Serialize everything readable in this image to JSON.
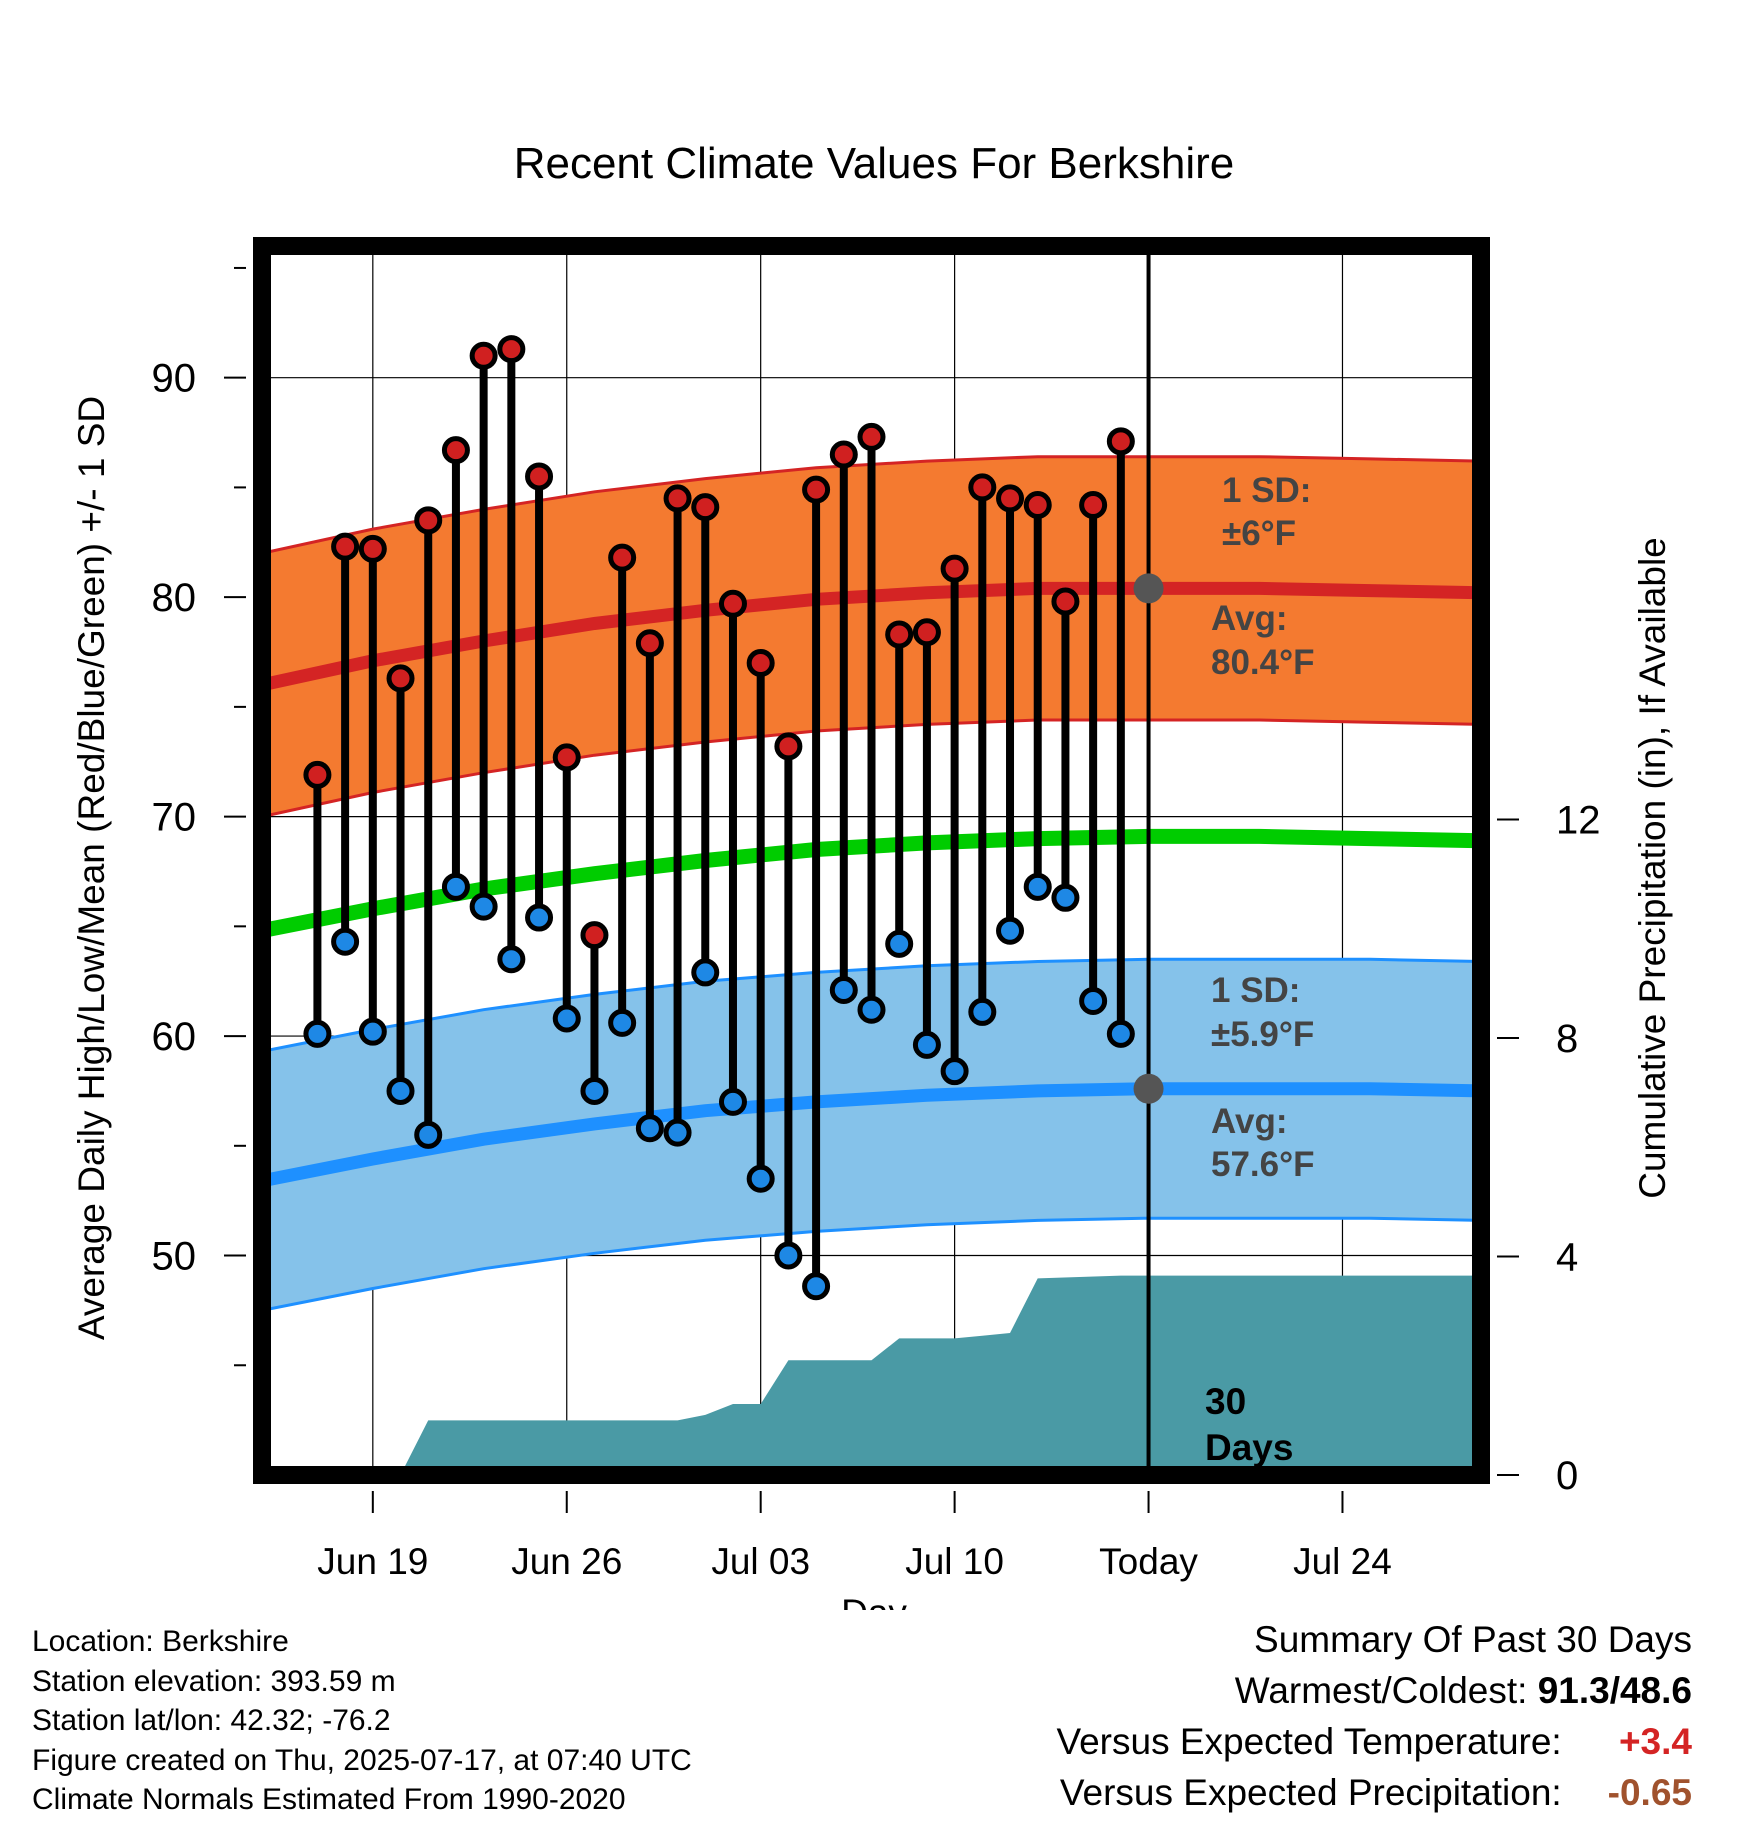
{
  "chart_data": {
    "type": "line",
    "title": "Recent Climate Values For Berkshire",
    "xlabel": "Day",
    "ylabel": "Average Daily High/Low/Mean (Red/Blue/Green) +/- 1 SD",
    "y2label": "Cumulative Precipitation (in), If Available",
    "xlim": [
      "2025-06-15",
      "2025-07-29"
    ],
    "ylim": [
      40,
      96
    ],
    "y2lim": [
      0,
      22.5
    ],
    "x_ticks": [
      {
        "day": "2025-06-19",
        "label": "Jun 19"
      },
      {
        "day": "2025-06-26",
        "label": "Jun 26"
      },
      {
        "day": "2025-07-03",
        "label": "Jul 03"
      },
      {
        "day": "2025-07-10",
        "label": "Jul 10"
      },
      {
        "day": "2025-07-17",
        "label": "Today"
      },
      {
        "day": "2025-07-24",
        "label": "Jul 24"
      }
    ],
    "y_ticks": [
      "50",
      "60",
      "70",
      "80",
      "90"
    ],
    "y_minor_ticks": [
      45,
      55,
      65,
      75,
      85,
      95
    ],
    "y2_ticks": [
      "0",
      "4",
      "8",
      "12"
    ],
    "grid": true,
    "today": "2025-07-17",
    "colors": {
      "high_band": "#f47a30",
      "high_line": "#d42424",
      "low_band": "#85c2ea",
      "low_line": "#1e90ff",
      "mean_line": "#00cc00",
      "precip": "#4a9aa5",
      "high_dot": "#d02020",
      "low_dot": "#1e88e5"
    },
    "normal_days": [
      "2025-06-15",
      "2025-06-19",
      "2025-06-23",
      "2025-06-27",
      "2025-07-01",
      "2025-07-05",
      "2025-07-09",
      "2025-07-13",
      "2025-07-17",
      "2025-07-21",
      "2025-07-25",
      "2025-07-29"
    ],
    "normal_high": [
      76.0,
      77.1,
      78.0,
      78.8,
      79.4,
      79.9,
      80.2,
      80.4,
      80.4,
      80.4,
      80.3,
      80.2
    ],
    "normal_low": [
      53.4,
      54.4,
      55.3,
      56.0,
      56.6,
      57.0,
      57.3,
      57.5,
      57.6,
      57.6,
      57.6,
      57.5
    ],
    "normal_mean": [
      64.8,
      65.8,
      66.7,
      67.4,
      68.0,
      68.5,
      68.8,
      69.0,
      69.1,
      69.1,
      69.0,
      68.9
    ],
    "high_sd": 6.0,
    "low_sd": 5.9,
    "daily_days": [
      "2025-06-17",
      "2025-06-18",
      "2025-06-19",
      "2025-06-20",
      "2025-06-21",
      "2025-06-22",
      "2025-06-23",
      "2025-06-24",
      "2025-06-25",
      "2025-06-26",
      "2025-06-27",
      "2025-06-28",
      "2025-06-29",
      "2025-06-30",
      "2025-07-01",
      "2025-07-02",
      "2025-07-03",
      "2025-07-04",
      "2025-07-05",
      "2025-07-06",
      "2025-07-07",
      "2025-07-08",
      "2025-07-09",
      "2025-07-10",
      "2025-07-11",
      "2025-07-12",
      "2025-07-13",
      "2025-07-14",
      "2025-07-15",
      "2025-07-16"
    ],
    "daily_high": [
      71.9,
      82.3,
      82.2,
      76.3,
      83.5,
      86.7,
      91.0,
      91.3,
      85.5,
      72.7,
      64.6,
      81.8,
      77.9,
      84.5,
      84.1,
      79.7,
      77.0,
      73.2,
      84.9,
      86.5,
      87.3,
      78.3,
      78.4,
      81.3,
      85.0,
      84.5,
      84.2,
      79.8,
      84.2,
      87.1
    ],
    "daily_low": [
      60.1,
      64.3,
      60.2,
      57.5,
      55.5,
      66.8,
      65.9,
      63.5,
      65.4,
      60.8,
      57.5,
      60.6,
      55.8,
      55.6,
      62.9,
      57.0,
      53.5,
      50.0,
      48.6,
      62.1,
      61.2,
      64.2,
      59.6,
      58.4,
      61.1,
      64.8,
      66.8,
      66.3,
      61.6,
      60.1
    ],
    "precip_steps": [
      {
        "day": "2025-06-15",
        "value": 0.0
      },
      {
        "day": "2025-06-20",
        "value": 0.0
      },
      {
        "day": "2025-06-21",
        "value": 1.0
      },
      {
        "day": "2025-06-30",
        "value": 1.0
      },
      {
        "day": "2025-07-01",
        "value": 1.1
      },
      {
        "day": "2025-07-02",
        "value": 1.3
      },
      {
        "day": "2025-07-03",
        "value": 1.3
      },
      {
        "day": "2025-07-04",
        "value": 2.1
      },
      {
        "day": "2025-07-07",
        "value": 2.1
      },
      {
        "day": "2025-07-08",
        "value": 2.5
      },
      {
        "day": "2025-07-10",
        "value": 2.5
      },
      {
        "day": "2025-07-11",
        "value": 2.55
      },
      {
        "day": "2025-07-12",
        "value": 2.6
      },
      {
        "day": "2025-07-13",
        "value": 3.6
      },
      {
        "day": "2025-07-16",
        "value": 3.65
      },
      {
        "day": "2025-07-29",
        "value": 3.65
      }
    ],
    "annotations": {
      "high_sd_label": "1 SD:",
      "high_sd_value": "±6°F",
      "high_avg_label": "Avg:",
      "high_avg_value": "80.4°F",
      "low_sd_label": "1 SD:",
      "low_sd_value": "±5.9°F",
      "low_avg_label": "Avg:",
      "low_avg_value": "57.6°F",
      "period_number": "30",
      "period_unit": "Days"
    }
  },
  "station": {
    "location": "Location: Berkshire",
    "elevation": "Station elevation: 393.59 m",
    "latlon": "Station lat/lon: 42.32; -76.2",
    "created": "Figure created on Thu, 2025-07-17, at 07:40 UTC",
    "normals": "Climate Normals Estimated From 1990-2020"
  },
  "summary": {
    "title": "Summary Of Past 30 Days",
    "warm_cold_label": "Warmest/Coldest:",
    "warm_cold_value": "91.3/48.6",
    "temp_label": "Versus Expected Temperature:",
    "temp_value": "+3.4",
    "temp_color": "#d42424",
    "precip_label": "Versus Expected Precipitation:",
    "precip_value": "-0.65",
    "precip_color": "#a0522d"
  }
}
